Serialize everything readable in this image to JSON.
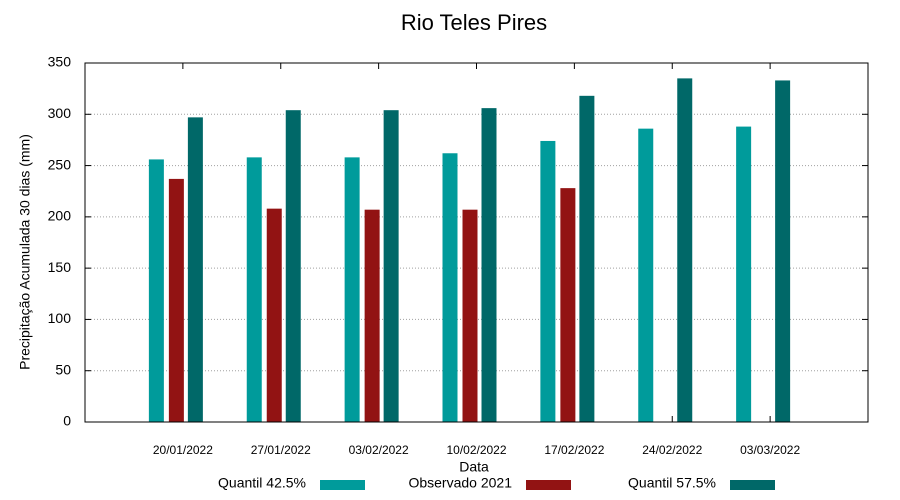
{
  "chart_data": {
    "type": "bar",
    "title": "Rio Teles Pires",
    "x_label": "Data",
    "y_label": "Precipitação Acumulada 30 dias (mm)",
    "categories": [
      "20/01/2022",
      "27/01/2022",
      "03/02/2022",
      "10/02/2022",
      "17/02/2022",
      "24/02/2022",
      "03/03/2022"
    ],
    "series": [
      {
        "name": "Quantil 42.5%",
        "color": "#009b9b",
        "values": [
          256,
          258,
          258,
          262,
          274,
          286,
          288
        ]
      },
      {
        "name": "Observado 2021",
        "color": "#921313",
        "values": [
          237,
          208,
          207,
          207,
          228,
          null,
          null
        ]
      },
      {
        "name": "Quantil 57.5%",
        "color": "#006868",
        "values": [
          297,
          304,
          304,
          306,
          318,
          335,
          333
        ]
      }
    ],
    "ylim": [
      0,
      350
    ],
    "yticks": [
      0,
      50,
      100,
      150,
      200,
      250,
      300,
      350
    ],
    "grid": true,
    "legend": "bottom"
  }
}
